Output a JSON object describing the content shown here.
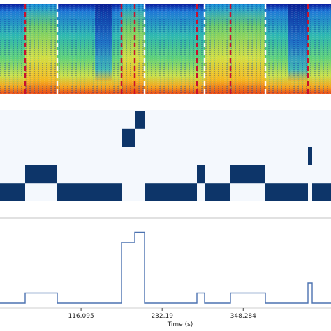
{
  "chart_data": [
    {
      "type": "heatmap",
      "title": "",
      "description_kind": "spectrogram",
      "colormap": "jet",
      "x_range_s": [
        0,
        474
      ],
      "boundaries": {
        "red_dashed_s": [
          36,
          174,
          193,
          282,
          330,
          441
        ],
        "white_dashed_s": [
          82,
          207,
          293,
          380
        ]
      },
      "colors": {
        "red": "#c8102e",
        "white": "#ffffff"
      }
    },
    {
      "type": "heatmap",
      "title": "",
      "description_kind": "segment-label piano roll",
      "rows": 6,
      "x_range_s": [
        0,
        474
      ],
      "cells": [
        {
          "row": 0,
          "start": 0,
          "end": 36
        },
        {
          "row": 1,
          "start": 36,
          "end": 82
        },
        {
          "row": 0,
          "start": 82,
          "end": 174
        },
        {
          "row": 3,
          "start": 174,
          "end": 193
        },
        {
          "row": 4,
          "start": 193,
          "end": 207
        },
        {
          "row": 0,
          "start": 207,
          "end": 282
        },
        {
          "row": 1,
          "start": 282,
          "end": 293
        },
        {
          "row": 0,
          "start": 293,
          "end": 330
        },
        {
          "row": 1,
          "start": 330,
          "end": 380
        },
        {
          "row": 0,
          "start": 380,
          "end": 441
        },
        {
          "row": 2,
          "start": 441,
          "end": 447
        },
        {
          "row": 0,
          "start": 447,
          "end": 474
        }
      ],
      "colors": {
        "background": "#f4f8fd",
        "cell": "#0d3569"
      }
    },
    {
      "type": "line",
      "title": "",
      "step": true,
      "x": [
        0,
        36,
        82,
        174,
        193,
        207,
        282,
        293,
        330,
        380,
        441,
        447,
        474
      ],
      "y": [
        0,
        1,
        0,
        6,
        7,
        0,
        1,
        0,
        1,
        0,
        2,
        0,
        0
      ],
      "xlim": [
        0,
        474
      ],
      "ylim": [
        0,
        8
      ],
      "xticks": [
        116.095,
        232.19,
        348.284
      ],
      "xticklabels": [
        "116.095",
        "232.19",
        "348.284"
      ],
      "xlabel": "Time (s)",
      "grid": false,
      "colors": {
        "line": "#4c72b0"
      }
    }
  ]
}
